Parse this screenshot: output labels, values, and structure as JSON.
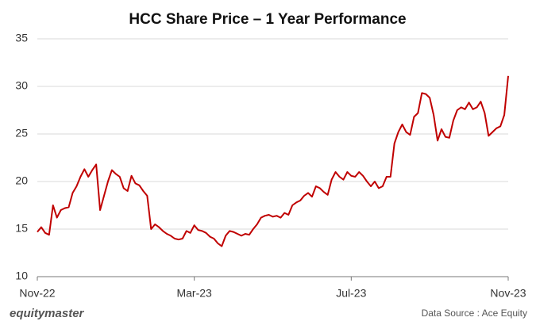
{
  "chart_data": {
    "type": "line",
    "title": "HCC Share Price – 1 Year Performance",
    "brand": "equitymaster",
    "source": "Data Source : Ace Equity",
    "color": "#c00000",
    "ylim": [
      10,
      35
    ],
    "yticks": [
      10,
      15,
      20,
      25,
      30,
      35
    ],
    "grid": true,
    "categories": [
      "Nov-22",
      null,
      null,
      null,
      null,
      null,
      null,
      null,
      null,
      null,
      null,
      null,
      null,
      null,
      null,
      null,
      null,
      null,
      null,
      null,
      null,
      null,
      null,
      null,
      null,
      null,
      null,
      null,
      null,
      null,
      null,
      null,
      null,
      null,
      null,
      null,
      null,
      null,
      null,
      null,
      "Mar-23",
      null,
      null,
      null,
      null,
      null,
      null,
      null,
      null,
      null,
      null,
      null,
      null,
      null,
      null,
      null,
      null,
      null,
      null,
      null,
      null,
      null,
      null,
      null,
      null,
      null,
      null,
      null,
      null,
      null,
      null,
      null,
      null,
      null,
      null,
      null,
      null,
      null,
      null,
      null,
      "Jul-23",
      null,
      null,
      null,
      null,
      null,
      null,
      null,
      null,
      null,
      null,
      null,
      null,
      null,
      null,
      null,
      null,
      null,
      null,
      null,
      null,
      null,
      null,
      null,
      null,
      null,
      null,
      null,
      null,
      null,
      null,
      null,
      null,
      null,
      null,
      null,
      null,
      null,
      null,
      null,
      "Nov-23"
    ],
    "values": [
      14.7,
      15.2,
      14.6,
      14.4,
      17.5,
      16.2,
      17.0,
      17.2,
      17.3,
      18.8,
      19.5,
      20.5,
      21.3,
      20.5,
      21.2,
      21.8,
      17.0,
      18.5,
      20.0,
      21.2,
      20.8,
      20.5,
      19.3,
      19.0,
      20.6,
      19.8,
      19.6,
      19.0,
      18.5,
      15.0,
      15.5,
      15.2,
      14.8,
      14.5,
      14.3,
      14.0,
      13.9,
      14.0,
      14.8,
      14.6,
      15.4,
      14.9,
      14.8,
      14.6,
      14.2,
      14.0,
      13.5,
      13.2,
      14.3,
      14.8,
      14.7,
      14.5,
      14.3,
      14.5,
      14.4,
      15.0,
      15.5,
      16.2,
      16.4,
      16.5,
      16.3,
      16.4,
      16.2,
      16.7,
      16.5,
      17.5,
      17.8,
      18.0,
      18.5,
      18.8,
      18.4,
      19.5,
      19.3,
      18.9,
      18.6,
      20.2,
      21.0,
      20.5,
      20.2,
      21.0,
      20.6,
      20.5,
      21.0,
      20.6,
      20.0,
      19.5,
      20.0,
      19.3,
      19.5,
      20.5,
      20.5,
      24.0,
      25.2,
      26.0,
      25.2,
      24.9,
      26.8,
      27.2,
      29.3,
      29.2,
      28.8,
      27.0,
      24.3,
      25.5,
      24.7,
      24.6,
      26.4,
      27.5,
      27.8,
      27.6,
      28.3,
      27.6,
      27.8,
      28.4,
      27.2,
      24.8,
      25.2,
      25.6,
      25.8,
      27.0,
      31.1
    ]
  }
}
